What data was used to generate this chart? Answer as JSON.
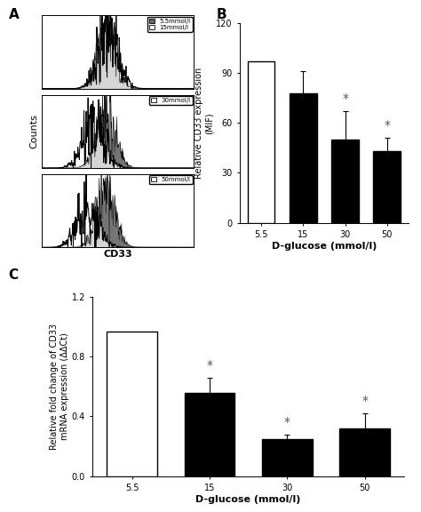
{
  "panel_A_label": "A",
  "panel_B_label": "B",
  "panel_C_label": "C",
  "B_categories": [
    "5.5",
    "15",
    "30",
    "50"
  ],
  "B_values": [
    97,
    78,
    50,
    43
  ],
  "B_errors": [
    0,
    13,
    17,
    8
  ],
  "B_colors": [
    "white",
    "black",
    "black",
    "black"
  ],
  "B_ylabel": "Relative CD33 expression\n(MIF)",
  "B_xlabel": "D-glucose (mmol/l)",
  "B_ylim": [
    0,
    120
  ],
  "B_yticks": [
    0,
    30,
    60,
    90,
    120
  ],
  "B_sig": [
    "",
    "",
    "*",
    "*"
  ],
  "C_categories": [
    "5.5",
    "15",
    "30",
    "50"
  ],
  "C_values": [
    0.97,
    0.56,
    0.25,
    0.32
  ],
  "C_errors": [
    0,
    0.1,
    0.03,
    0.1
  ],
  "C_colors": [
    "white",
    "black",
    "black",
    "black"
  ],
  "C_ylabel": "Relative fold change of CD33\nmRNA expression (ΔΔCt)",
  "C_xlabel": "D-glucose (mmol/l)",
  "C_ylim": [
    0,
    1.2
  ],
  "C_yticks": [
    0.0,
    0.4,
    0.8,
    1.2
  ],
  "C_sig": [
    "",
    "*",
    "*",
    "*"
  ],
  "flow_xlabel": "CD33",
  "flow_ylabel": "Counts",
  "bg_color": "white",
  "bar_edgecolor": "black",
  "bar_linewidth": 1.0,
  "fontsize_label": 8,
  "fontsize_tick": 7,
  "fontsize_panel": 11
}
